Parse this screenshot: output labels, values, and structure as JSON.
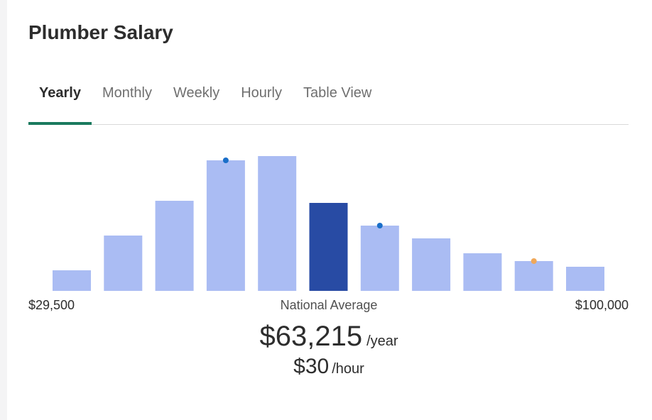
{
  "page_title": "Plumber Salary",
  "tabs": [
    {
      "label": "Yearly",
      "active": true
    },
    {
      "label": "Monthly",
      "active": false
    },
    {
      "label": "Weekly",
      "active": false
    },
    {
      "label": "Hourly",
      "active": false
    },
    {
      "label": "Table View",
      "active": false
    }
  ],
  "range": {
    "min_label": "$29,500",
    "max_label": "$100,000"
  },
  "national_average": {
    "label": "National Average",
    "yearly_value": "$63,215",
    "yearly_unit": "/year",
    "hourly_value": "$30",
    "hourly_unit": "/hour"
  },
  "colors": {
    "bar": "#aabcf3",
    "bar_highlight": "#284ba4",
    "marker_blue": "#1a6fc9",
    "marker_orange": "#f0a85a",
    "tab_underline": "#1a7a5e"
  },
  "chart_data": {
    "type": "bar",
    "x_range": [
      29500,
      100000
    ],
    "values": [
      29,
      78,
      127,
      184,
      190,
      124,
      92,
      74,
      53,
      42,
      34
    ],
    "highlight_index": 5,
    "markers": [
      {
        "bar_index": 3,
        "color": "blue"
      },
      {
        "bar_index": 6,
        "color": "blue"
      },
      {
        "bar_index": 9,
        "color": "orange"
      }
    ]
  }
}
